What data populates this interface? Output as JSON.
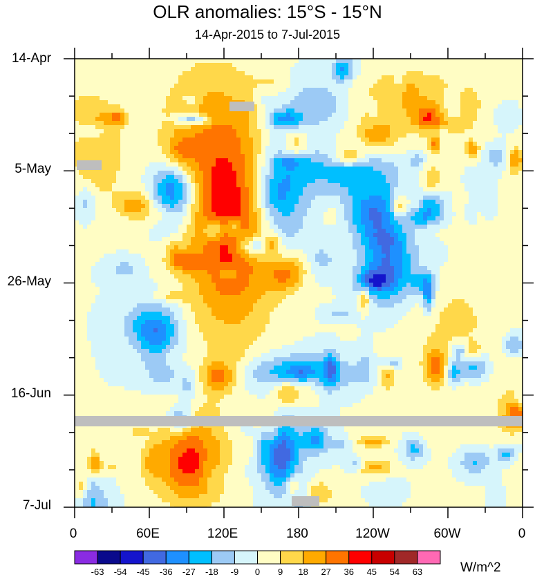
{
  "chart_data": {
    "type": "heatmap",
    "title": "OLR anomalies: 15°S - 15°N",
    "subtitle": "14-Apr-2015 to 7-Jul-2015",
    "y_axis": {
      "ticks": [
        "14-Apr",
        "5-May",
        "26-May",
        "16-Jun",
        "7-Jul"
      ],
      "range": [
        "14-Apr-2015",
        "7-Jul-2015"
      ],
      "direction": "time increases downward",
      "minor_tick_interval_days": 7
    },
    "x_axis": {
      "ticks": [
        "0",
        "60E",
        "120E",
        "180",
        "120W",
        "60W",
        "0"
      ],
      "range_degrees_east": [
        0,
        360
      ]
    },
    "colorbar": {
      "labels": [
        "-63",
        "-54",
        "-45",
        "-36",
        "-27",
        "-18",
        "-9",
        "0",
        "9",
        "18",
        "27",
        "36",
        "45",
        "54",
        "63"
      ],
      "colors": [
        "#8a2be2",
        "#0a0a8c",
        "#1414cc",
        "#4169e1",
        "#1e90ff",
        "#00bfff",
        "#9ccaf5",
        "#d6f5fb",
        "#fffdc4",
        "#ffd84a",
        "#ffaa00",
        "#ff7400",
        "#ff0000",
        "#c80000",
        "#a02828",
        "#ff69b4"
      ],
      "units": "W/m^2"
    },
    "missing_color": "#bebebe"
  }
}
